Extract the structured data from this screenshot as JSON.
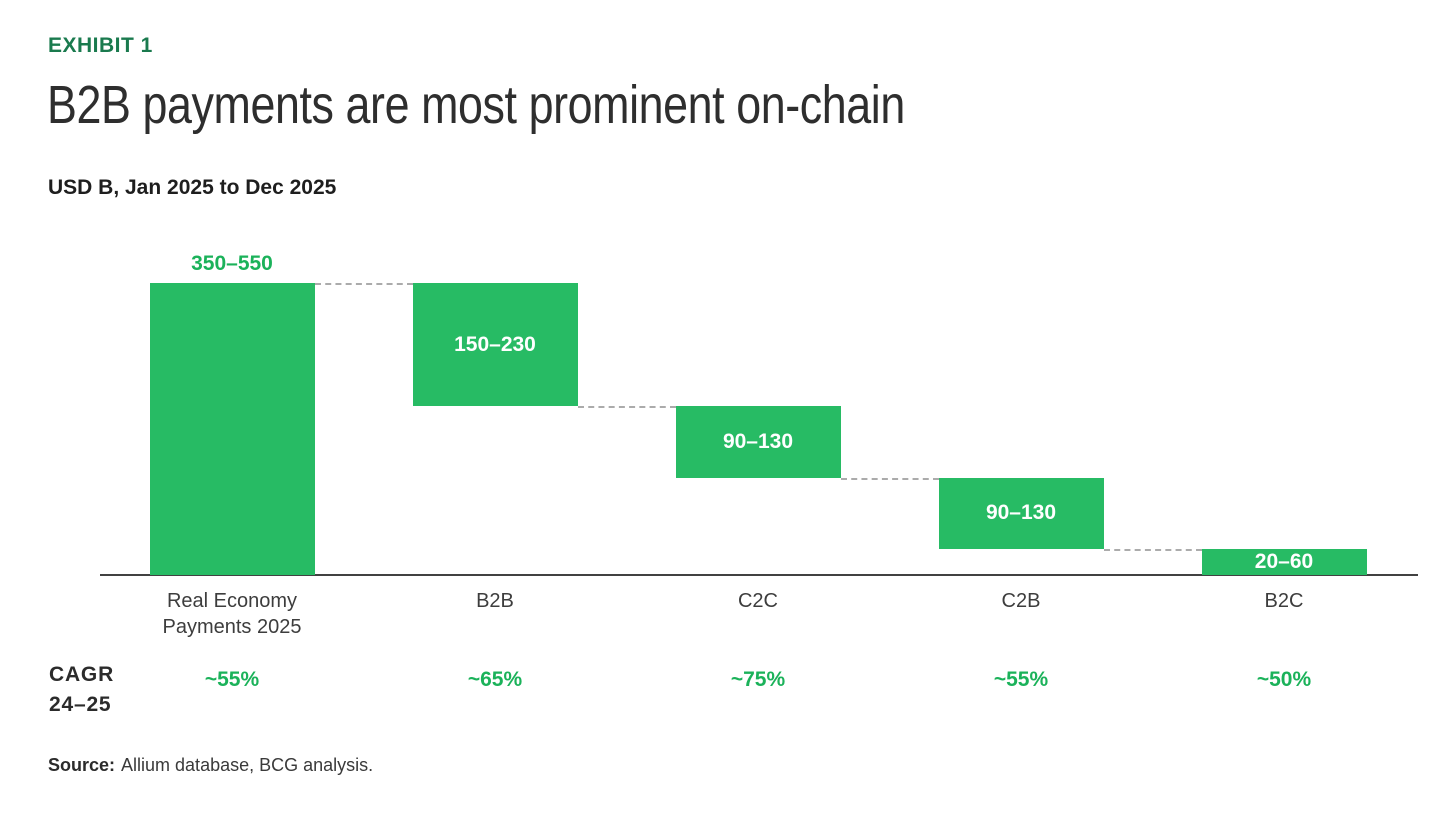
{
  "header": {
    "exhibit_label": "EXHIBIT 1",
    "title": "B2B payments are most prominent on-chain",
    "subtitle": "USD B, Jan 2025 to Dec 2025"
  },
  "cagr_row": {
    "label_line1": "CAGR",
    "label_line2": "24–25"
  },
  "source": {
    "label": "Source:",
    "text": "Allium database, BCG analysis."
  },
  "colors": {
    "bar_green": "#27BB64",
    "green_text": "#1BB25A",
    "exhibit_green": "#1A7A4E",
    "connector_gray": "#ABABAB",
    "axis_gray": "#414141",
    "title_gray": "#2E2E2E"
  },
  "chart_data": {
    "type": "bar",
    "subtype": "waterfall",
    "title": "B2B payments are most prominent on-chain",
    "unit_note": "USD B, Jan 2025 to Dec 2025",
    "ylim": [
      0,
      450
    ],
    "grid": false,
    "legend": false,
    "categories": [
      "Real Economy\nPayments 2025",
      "B2B",
      "C2C",
      "C2B",
      "B2C"
    ],
    "bars": [
      {
        "category": "Real Economy\nPayments 2025",
        "value_label": "350–550",
        "range_usd_b": [
          350,
          550
        ],
        "midpoint": 450,
        "cumulative_start": 0,
        "cumulative_end": 450,
        "label_position": "above",
        "cagr_24_25": "~55%"
      },
      {
        "category": "B2B",
        "value_label": "150–230",
        "range_usd_b": [
          150,
          230
        ],
        "midpoint": 190,
        "cumulative_start": 260,
        "cumulative_end": 450,
        "label_position": "inside",
        "cagr_24_25": "~65%"
      },
      {
        "category": "C2C",
        "value_label": "90–130",
        "range_usd_b": [
          90,
          130
        ],
        "midpoint": 110,
        "cumulative_start": 150,
        "cumulative_end": 260,
        "label_position": "inside",
        "cagr_24_25": "~75%"
      },
      {
        "category": "C2B",
        "value_label": "90–130",
        "range_usd_b": [
          90,
          130
        ],
        "midpoint": 110,
        "cumulative_start": 40,
        "cumulative_end": 150,
        "label_position": "inside",
        "cagr_24_25": "~55%"
      },
      {
        "category": "B2C",
        "value_label": "20–60",
        "range_usd_b": [
          20,
          60
        ],
        "midpoint": 40,
        "cumulative_start": 0,
        "cumulative_end": 40,
        "label_position": "inside",
        "cagr_24_25": "~50%"
      }
    ]
  }
}
